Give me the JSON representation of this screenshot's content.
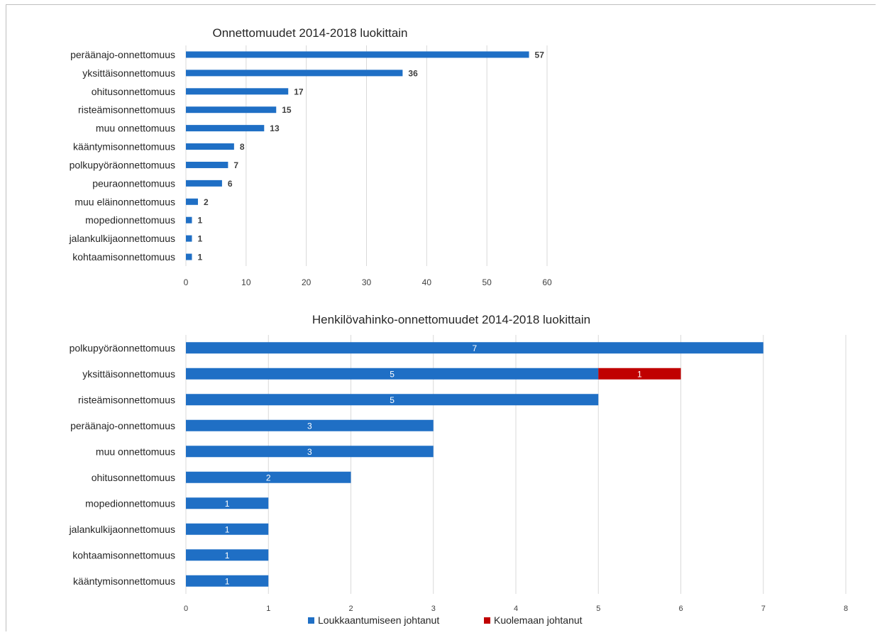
{
  "chart_data": [
    {
      "type": "bar",
      "orientation": "horizontal",
      "title": "Onnettomuudet 2014-2018 luokittain",
      "categories": [
        "peräänajo-onnettomuus",
        "yksittäisonnettomuus",
        "ohitusonnettomuus",
        "risteämisonnettomuus",
        "muu onnettomuus",
        "kääntymisonnettomuus",
        "polkupyöräonnettomuus",
        "peuraonnettomuus",
        "muu eläinonnettomuus",
        "mopedionnettomuus",
        "jalankulkijaonnettomuus",
        "kohtaamisonnettomuus"
      ],
      "values": [
        57,
        36,
        17,
        15,
        13,
        8,
        7,
        6,
        2,
        1,
        1,
        1
      ],
      "data_labels": [
        "57",
        "36",
        "17",
        "15",
        "13",
        "8",
        "7",
        "6",
        "2",
        "1",
        "1",
        "1"
      ],
      "xlim": [
        0,
        60
      ],
      "xticks": [
        "0",
        "10",
        "20",
        "30",
        "40",
        "50",
        "60"
      ],
      "grid": true,
      "color": "#1F6FC5"
    },
    {
      "type": "bar",
      "orientation": "horizontal",
      "stacked": true,
      "title": "Henkilövahinko-onnettomuudet 2014-2018 luokittain",
      "categories": [
        "polkupyöräonnettomuus",
        "yksittäisonnettomuus",
        "risteämisonnettomuus",
        "peräänajo-onnettomuus",
        "muu onnettomuus",
        "ohitusonnettomuus",
        "mopedionnettomuus",
        "jalankulkijaonnettomuus",
        "kohtaamisonnettomuus",
        "kääntymisonnettomuus"
      ],
      "series": [
        {
          "name": "Loukkaantumiseen johtanut",
          "color": "#1F6FC5",
          "values": [
            7,
            5,
            5,
            3,
            3,
            2,
            1,
            1,
            1,
            1
          ],
          "labels": [
            "7",
            "5",
            "5",
            "3",
            "3",
            "2",
            "1",
            "1",
            "1",
            "1"
          ]
        },
        {
          "name": "Kuolemaan johtanut",
          "color": "#C00000",
          "values": [
            0,
            1,
            0,
            0,
            0,
            0,
            0,
            0,
            0,
            0
          ],
          "labels": [
            "",
            "1",
            "",
            "",
            "",
            "",
            "",
            "",
            "",
            ""
          ]
        }
      ],
      "xlim": [
        0,
        8
      ],
      "xticks": [
        "0",
        "1",
        "2",
        "3",
        "4",
        "5",
        "6",
        "7",
        "8"
      ],
      "grid": true,
      "legend": "bottom"
    }
  ]
}
